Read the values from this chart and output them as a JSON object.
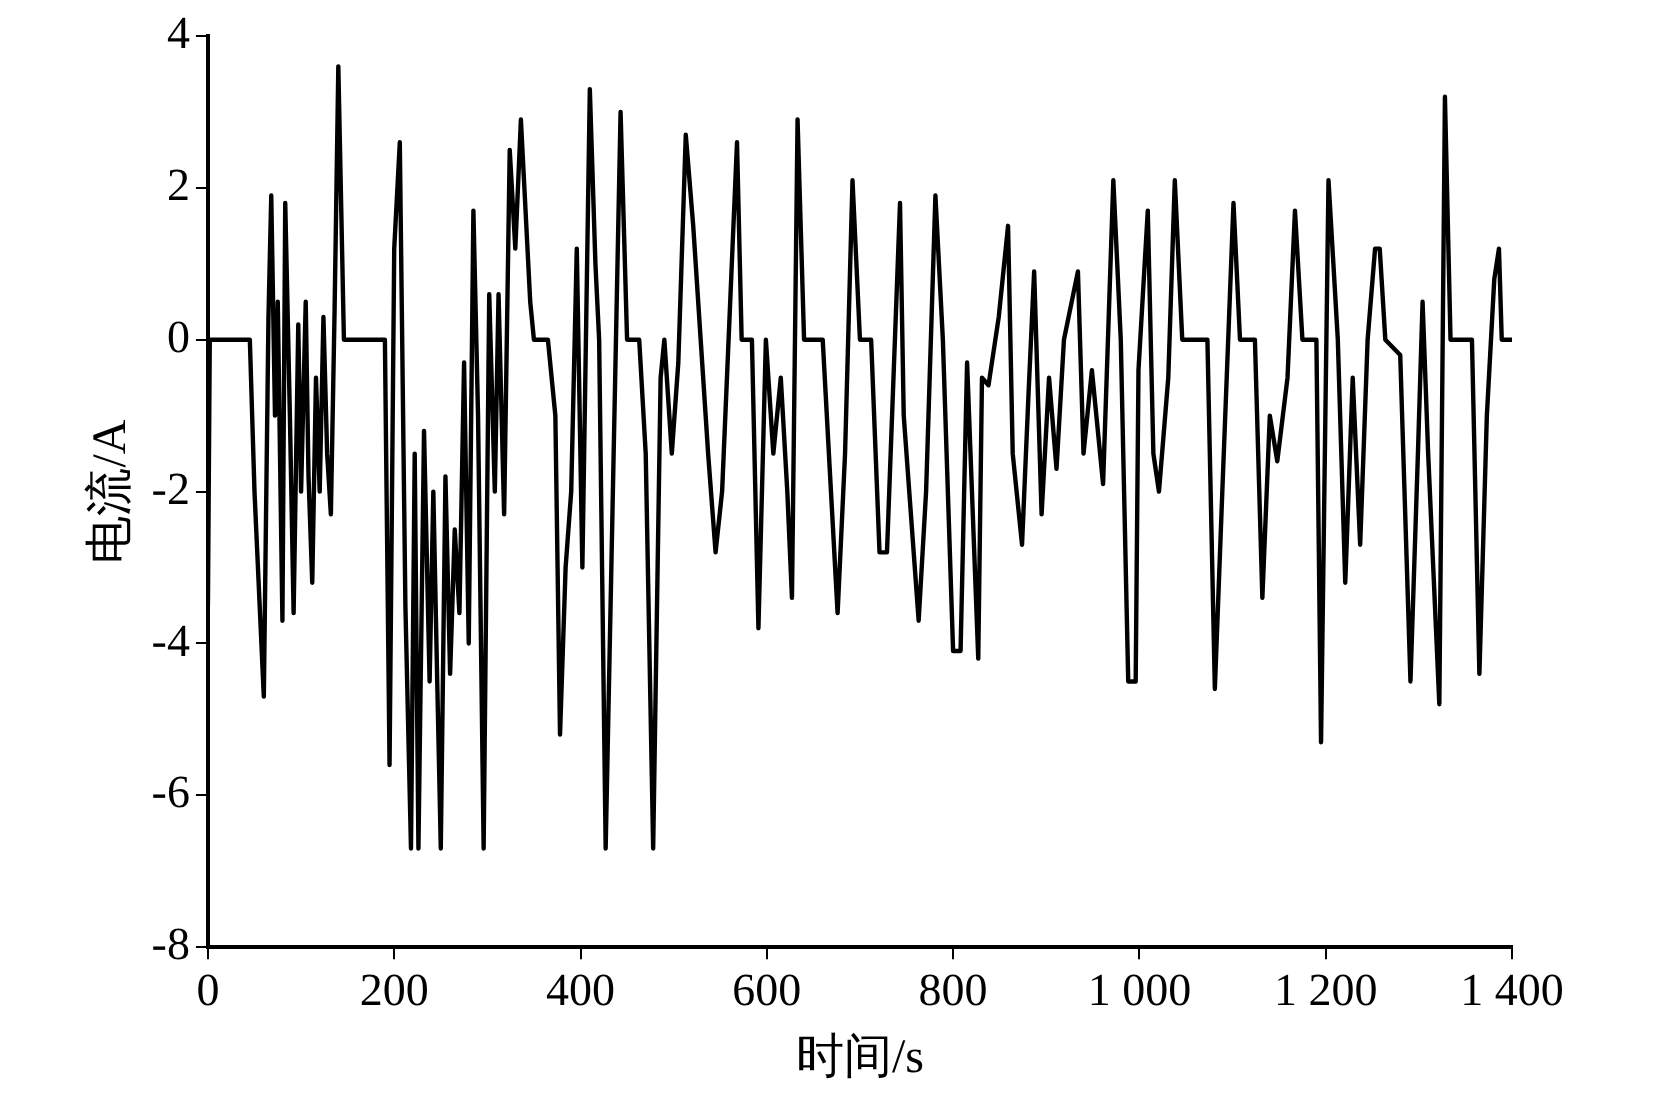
{
  "chart_data": {
    "type": "line",
    "xlabel": "时间/s",
    "ylabel": "电流/A",
    "x": [
      0,
      2,
      45,
      50,
      60,
      65,
      68,
      72,
      75,
      80,
      83,
      88,
      92,
      97,
      100,
      105,
      108,
      112,
      116,
      120,
      124,
      128,
      132,
      136,
      140,
      146,
      190,
      195,
      200,
      206,
      212,
      218,
      222,
      226,
      232,
      238,
      242,
      246,
      250,
      255,
      260,
      265,
      270,
      275,
      280,
      285,
      290,
      296,
      302,
      308,
      312,
      318,
      324,
      330,
      336,
      346,
      350,
      365,
      373,
      378,
      384,
      390,
      396,
      402,
      410,
      416,
      420,
      427,
      443,
      450,
      463,
      470,
      478,
      486,
      490,
      498,
      505,
      513,
      521,
      529,
      530,
      537,
      545,
      552,
      568,
      573,
      584,
      591,
      599,
      607,
      615,
      622,
      627,
      633,
      640,
      660,
      676,
      684,
      692,
      700,
      712,
      721,
      729,
      743,
      747,
      763,
      771,
      781,
      789,
      800,
      808,
      815,
      827,
      831,
      838,
      849,
      859,
      864,
      874,
      881,
      887,
      895,
      903,
      911,
      919,
      934,
      940,
      949,
      961,
      972,
      980,
      988,
      996,
      999,
      1009,
      1015,
      1021,
      1031,
      1038,
      1046,
      1073,
      1081,
      1089,
      1101,
      1108,
      1124,
      1132,
      1140,
      1148,
      1159,
      1167,
      1175,
      1190,
      1195,
      1203,
      1213,
      1221,
      1229,
      1237,
      1245,
      1253,
      1258,
      1264,
      1280,
      1291,
      1299,
      1304,
      1310,
      1322,
      1328,
      1334,
      1357,
      1365,
      1373,
      1381,
      1386,
      1389,
      1400
    ],
    "values": [
      -3.5,
      0,
      0,
      -2,
      -4.7,
      0.3,
      1.9,
      -1,
      0.5,
      -3.7,
      1.8,
      -1,
      -3.6,
      0.2,
      -2,
      0.5,
      -1.8,
      -3.2,
      -0.5,
      -2,
      0.3,
      -1.5,
      -2.3,
      0.4,
      3.6,
      0,
      0,
      -5.6,
      1.2,
      2.6,
      -3.5,
      -6.7,
      -1.5,
      -6.7,
      -1.2,
      -4.5,
      -2,
      -4.4,
      -6.7,
      -1.8,
      -4.4,
      -2.5,
      -3.6,
      -0.3,
      -4,
      1.7,
      -1,
      -6.7,
      0.6,
      -2,
      0.6,
      -2.3,
      2.5,
      1.2,
      2.9,
      0.5,
      0,
      0,
      -1,
      -5.2,
      -3,
      -2,
      1.2,
      -3,
      3.3,
      1,
      0,
      -6.7,
      3,
      0,
      0,
      -1.5,
      -6.7,
      -0.5,
      0,
      -1.5,
      -0.3,
      2.7,
      1.5,
      0,
      0,
      -1.5,
      -2.8,
      -2,
      2.6,
      0,
      0,
      -3.8,
      0,
      -1.5,
      -0.5,
      -2,
      -3.4,
      2.9,
      0,
      0,
      -3.6,
      -1.5,
      2.1,
      0,
      0,
      -2.8,
      -2.8,
      1.8,
      -1,
      -3.7,
      -2,
      1.9,
      0,
      -4.1,
      -4.1,
      -0.3,
      -4.2,
      -0.5,
      -0.6,
      0.3,
      1.5,
      -1.5,
      -2.7,
      -0.7,
      0.9,
      -2.3,
      -0.5,
      -1.7,
      0,
      0.9,
      -1.5,
      -0.4,
      -1.9,
      2.1,
      0,
      -4.5,
      -4.5,
      -0.4,
      1.7,
      -1.5,
      -2,
      -0.5,
      2.1,
      0,
      0,
      -4.6,
      -2,
      1.8,
      0,
      0,
      -3.4,
      -1,
      -1.6,
      -0.5,
      1.7,
      0,
      0,
      -5.3,
      2.1,
      0,
      -3.2,
      -0.5,
      -2.7,
      0,
      1.2,
      1.2,
      0,
      -0.2,
      -4.5,
      -1.5,
      0.5,
      -1.5,
      -4.8,
      3.2,
      0,
      0,
      -4.4,
      -1,
      0.8,
      1.2,
      0,
      0
    ],
    "color": "#000000",
    "xlim": [
      0,
      1400
    ],
    "xticks": [
      0,
      200,
      400,
      600,
      800,
      {
        "value": 1000,
        "label": "1 000"
      },
      {
        "value": 1200,
        "label": "1 200"
      },
      {
        "value": 1400,
        "label": "1 400"
      }
    ],
    "ylim": [
      -8,
      4
    ],
    "yticks": [
      -8,
      -6,
      -4,
      -2,
      0,
      2,
      4
    ],
    "grid": false,
    "legend": false,
    "marker": "none",
    "line_style": "solid"
  }
}
